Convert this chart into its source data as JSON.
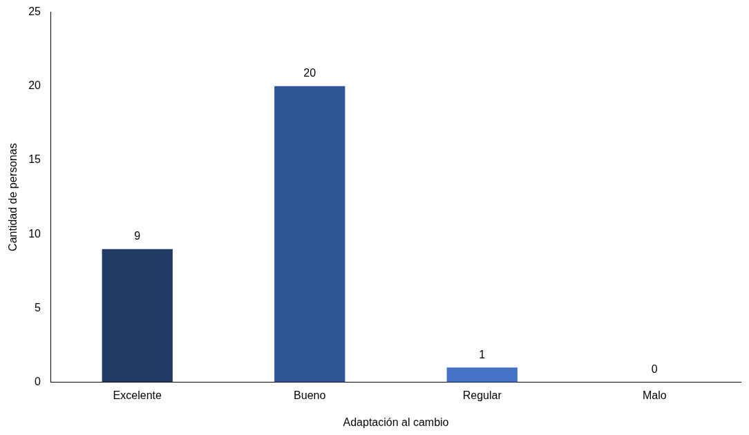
{
  "chart_data": {
    "type": "bar",
    "xlabel": "Adaptación al cambio",
    "ylabel": "Cantidad de personas",
    "categories": [
      "Excelente",
      "Bueno",
      "Regular",
      "Malo"
    ],
    "values": [
      9,
      20,
      1,
      0
    ],
    "colors": [
      "#213a64",
      "#2f5597",
      "#4472c4",
      "#8faadc"
    ],
    "ylim": [
      0,
      25
    ],
    "yticks": [
      0,
      5,
      10,
      15,
      20,
      25
    ],
    "grid": false,
    "legend": false,
    "data_labels": true
  }
}
